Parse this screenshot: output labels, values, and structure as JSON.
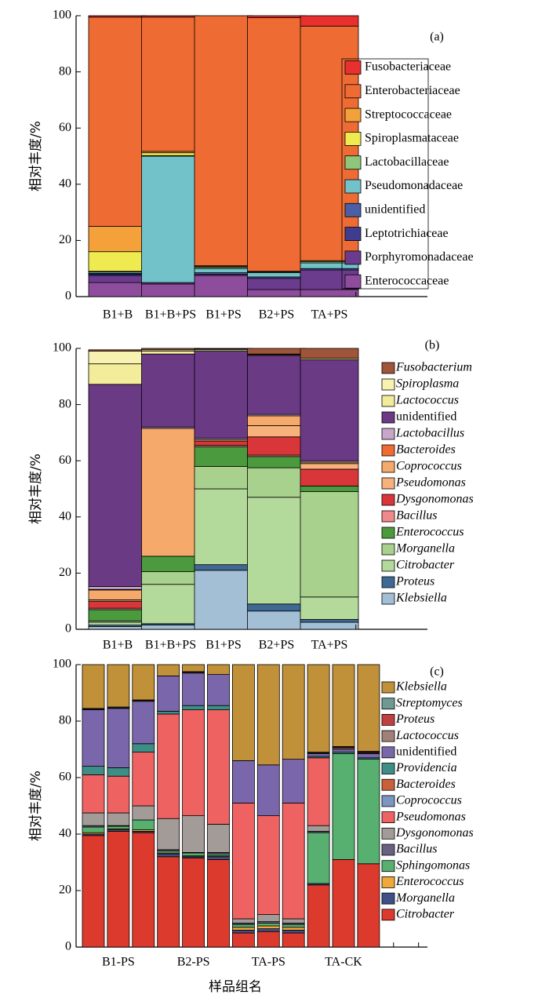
{
  "chart_data": [
    {
      "type": "bar",
      "stacked": true,
      "annotation": "(a)",
      "y_label": "相对丰度/%",
      "categories": [
        "B1+B",
        "B1+B+PS",
        "B1+PS",
        "B2+PS",
        "TA+PS"
      ],
      "ylim": [
        0,
        100
      ],
      "yticks": [
        0,
        20,
        40,
        60,
        80,
        100
      ],
      "legend": "right",
      "series": [
        {
          "name": "Enterococcaceae",
          "color": "#8e4c9d",
          "values": [
            5,
            4.5,
            7.5,
            2.5,
            2.5
          ]
        },
        {
          "name": "Porphyromonadaceae",
          "color": "#6b3c8e",
          "values": [
            2.5,
            0.5,
            0.5,
            4,
            7
          ]
        },
        {
          "name": "Leptotrichiaceae",
          "color": "#3e3d8f",
          "values": [
            0.5,
            0,
            0,
            0,
            0
          ]
        },
        {
          "name": "unidentified",
          "color": "#4a5fa6",
          "values": [
            0.3,
            0,
            0.5,
            0.5,
            0.5
          ]
        },
        {
          "name": "Pseudomonadaceae",
          "color": "#72c2c9",
          "values": [
            0.5,
            45,
            1.5,
            1.5,
            2
          ]
        },
        {
          "name": "Lactobacillaceae",
          "color": "#8fc77a",
          "values": [
            0.2,
            0.2,
            0.5,
            0.3,
            0.5
          ]
        },
        {
          "name": "Spiroplasmataceae",
          "color": "#eeea4f",
          "values": [
            7,
            1,
            0.2,
            0,
            0
          ]
        },
        {
          "name": "Streptococcaceae",
          "color": "#f4a13c",
          "values": [
            9,
            0.5,
            0.3,
            0.2,
            0.3
          ]
        },
        {
          "name": "Enterobacteriaceae",
          "color": "#ee6b33",
          "values": [
            74.5,
            47.8,
            89,
            90.3,
            83.5
          ]
        },
        {
          "name": "Fusobacteriaceae",
          "color": "#e8312f",
          "values": [
            0.5,
            0.5,
            0,
            0.7,
            3.7
          ]
        }
      ]
    },
    {
      "type": "bar",
      "stacked": true,
      "annotation": "(b)",
      "y_label": "相对丰度/%",
      "categories": [
        "B1+B",
        "B1+B+PS",
        "B1+PS",
        "B2+PS",
        "TA+PS"
      ],
      "ylim": [
        0,
        100
      ],
      "yticks": [
        0,
        20,
        40,
        60,
        80,
        100
      ],
      "legend": "right",
      "series": [
        {
          "name": "Klebsiella",
          "italic": true,
          "color": "#a3bfd6",
          "values": [
            1,
            1.5,
            21,
            6.5,
            2.5
          ]
        },
        {
          "name": "Proteus",
          "italic": true,
          "color": "#3f6995",
          "values": [
            0.5,
            0.5,
            2,
            2.5,
            1
          ]
        },
        {
          "name": "Citrobacter",
          "italic": true,
          "color": "#b3d99b",
          "values": [
            1,
            14,
            27,
            38,
            8
          ]
        },
        {
          "name": "Morganella",
          "italic": true,
          "color": "#a9d18e",
          "values": [
            0.5,
            4.5,
            8,
            10.5,
            37.5
          ]
        },
        {
          "name": "Enterococcus",
          "italic": true,
          "color": "#4b9a3e",
          "values": [
            4,
            5.5,
            7,
            4,
            2
          ]
        },
        {
          "name": "Bacillus",
          "italic": true,
          "color": "#f08a8a",
          "values": [
            0.5,
            0,
            0.5,
            0.5,
            0
          ]
        },
        {
          "name": "Dysgonomonas",
          "italic": true,
          "color": "#d9363a",
          "values": [
            2.5,
            0,
            1.5,
            6.5,
            6
          ]
        },
        {
          "name": "Pseudomonas",
          "italic": true,
          "color": "#f6b27a",
          "values": [
            0.5,
            0,
            0,
            4,
            2
          ]
        },
        {
          "name": "Coprococcus",
          "italic": true,
          "color": "#f5a96a",
          "values": [
            3.5,
            45.5,
            0.5,
            3.5,
            0.5
          ]
        },
        {
          "name": "Bacteroides",
          "italic": true,
          "color": "#ee6b33",
          "values": [
            0.2,
            0,
            0,
            0,
            0
          ]
        },
        {
          "name": "Lactobacillus",
          "italic": true,
          "color": "#c7a6c9",
          "values": [
            1,
            0.5,
            0.5,
            0.5,
            0.5
          ]
        },
        {
          "name": "unidentified",
          "italic": false,
          "color": "#6b3a85",
          "values": [
            72,
            26,
            31,
            21,
            36
          ]
        },
        {
          "name": "Lactococcus",
          "italic": true,
          "color": "#f3ec9a",
          "values": [
            7.3,
            1,
            0.5,
            0.3,
            0.5
          ]
        },
        {
          "name": "Spiroplasma",
          "italic": true,
          "color": "#f7f2b0",
          "values": [
            4.5,
            0.5,
            0.3,
            0.2,
            0
          ]
        },
        {
          "name": "Fusobacterium",
          "italic": true,
          "color": "#a0543a",
          "values": [
            0.5,
            0.5,
            0.2,
            2,
            3.5
          ]
        }
      ]
    },
    {
      "type": "bar",
      "stacked": true,
      "annotation": "(c)",
      "y_label": "相对丰度/%",
      "x_label": "样品组名",
      "categories": [
        null,
        null,
        null,
        null,
        null,
        null,
        null,
        null,
        null,
        null,
        null,
        null
      ],
      "groups": [
        "B1-PS",
        "B2-PS",
        "TA-PS",
        "TA-CK"
      ],
      "ylim": [
        0,
        100
      ],
      "yticks": [
        0,
        20,
        40,
        60,
        80,
        100
      ],
      "legend": "right",
      "series": [
        {
          "name": "Citrobacter",
          "italic": true,
          "color": "#dd3a2e",
          "values": [
            39.5,
            41,
            40.5,
            32,
            31.5,
            31,
            5,
            5.5,
            5,
            22,
            31,
            29.5
          ]
        },
        {
          "name": "Morganella",
          "italic": true,
          "color": "#3f5088",
          "values": [
            0.5,
            0.5,
            0.5,
            1,
            0.5,
            1,
            1,
            1,
            1,
            0.5,
            0,
            0
          ]
        },
        {
          "name": "Enterococcus",
          "italic": true,
          "color": "#f0a83a",
          "values": [
            0.5,
            0.3,
            0.5,
            0.3,
            0.3,
            0.3,
            1,
            1,
            1,
            0,
            0,
            0
          ]
        },
        {
          "name": "Sphingomonas",
          "italic": true,
          "color": "#57b070",
          "values": [
            2,
            1,
            3.5,
            0.7,
            1,
            0.7,
            1,
            1,
            1,
            18,
            37.5,
            37
          ]
        },
        {
          "name": "Bacillus",
          "italic": true,
          "color": "#6a6082",
          "values": [
            0.5,
            0.2,
            0,
            0.5,
            0.2,
            0.5,
            0.5,
            0.5,
            0.5,
            0.5,
            0,
            0
          ]
        },
        {
          "name": "Dysgonomonas",
          "italic": true,
          "color": "#a39b97",
          "values": [
            4.5,
            4.5,
            5,
            11,
            13,
            10,
            1.5,
            2.5,
            1.5,
            2,
            0,
            0
          ]
        },
        {
          "name": "Pseudomonas",
          "italic": true,
          "color": "#ef6262",
          "values": [
            13.5,
            13,
            19,
            37,
            37.5,
            40.5,
            41,
            35,
            41,
            24,
            0,
            0
          ]
        },
        {
          "name": "Coprococcus",
          "italic": true,
          "color": "#7c95c1",
          "values": [
            0,
            0,
            0,
            0,
            0,
            0,
            0,
            0,
            0,
            0,
            0,
            0
          ]
        },
        {
          "name": "Bacteroides",
          "italic": true,
          "color": "#c9603a",
          "values": [
            0,
            0,
            0,
            0,
            0,
            0,
            0,
            0,
            0,
            0,
            0,
            0
          ]
        },
        {
          "name": "Providencia",
          "italic": true,
          "color": "#3e8e88",
          "values": [
            3,
            3,
            3,
            1,
            1.5,
            1.5,
            0,
            0,
            0,
            0.5,
            0.5,
            0.5
          ]
        },
        {
          "name": "unidentified",
          "italic": false,
          "color": "#7a67ab",
          "values": [
            20,
            21,
            15,
            12.5,
            11.5,
            11,
            15,
            18,
            15.5,
            1,
            1,
            1.5
          ]
        },
        {
          "name": "Lactococcus",
          "italic": true,
          "color": "#a08078",
          "values": [
            0.2,
            0.2,
            0.3,
            0,
            0.3,
            0,
            0,
            0,
            0,
            0.3,
            0.5,
            0.3
          ]
        },
        {
          "name": "Proteus",
          "italic": true,
          "color": "#c0403f",
          "values": [
            0,
            0,
            0,
            0,
            0,
            0,
            0,
            0,
            0,
            0.2,
            0.3,
            0.3
          ]
        },
        {
          "name": "Streptomyces",
          "italic": true,
          "color": "#6f9a94",
          "values": [
            0.3,
            0.3,
            0.2,
            0,
            0.2,
            0,
            0,
            0,
            0,
            0,
            0.2,
            0.2
          ]
        },
        {
          "name": "Klebsiella",
          "italic": true,
          "color": "#c1913a",
          "values": [
            15.5,
            15,
            12.5,
            4,
            2.5,
            3.5,
            34,
            35.5,
            33.5,
            31,
            29,
            30.7
          ]
        }
      ]
    }
  ]
}
